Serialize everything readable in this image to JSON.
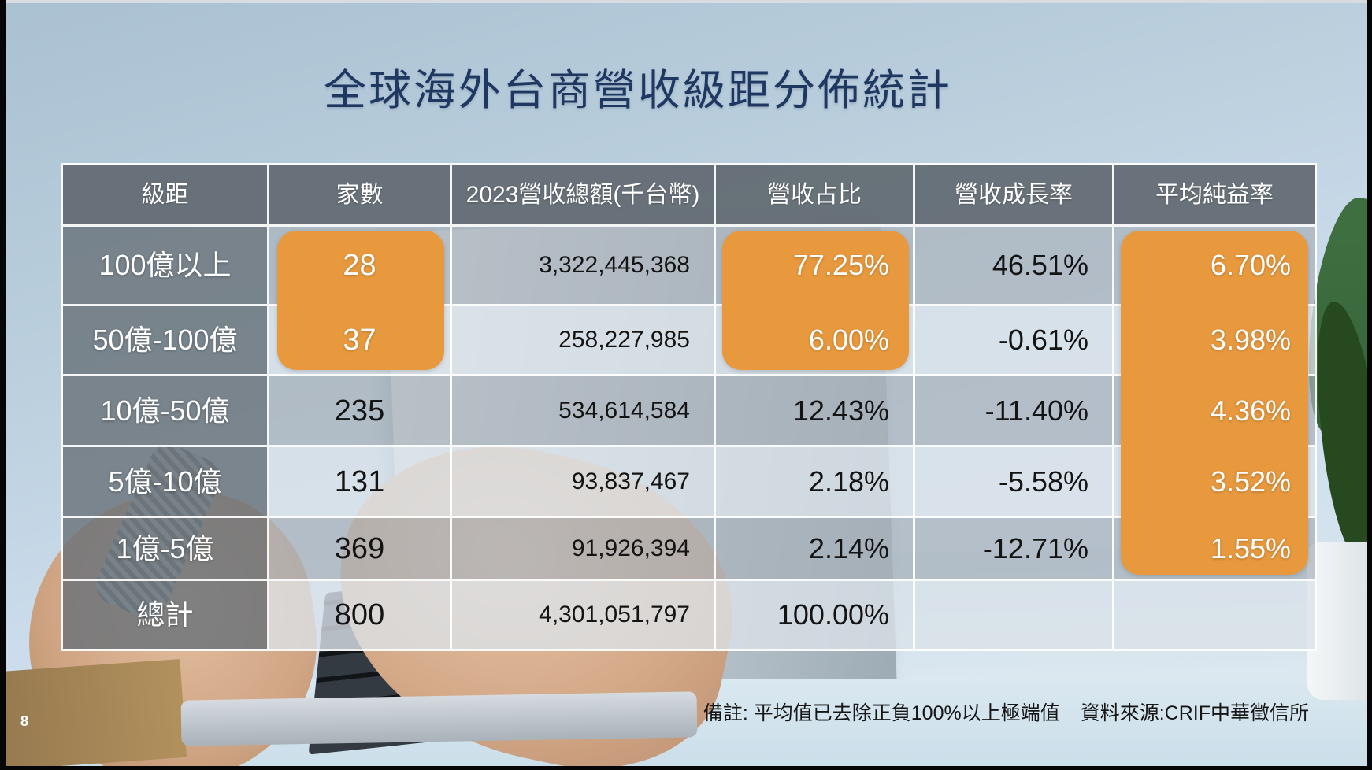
{
  "slide": {
    "title": "全球海外台商營收級距分佈統計",
    "footnote_note": "備註: 平均值已去除正負100%以上極端值",
    "footnote_source": "資料來源:CRIF中華徵信所",
    "page_number": "8"
  },
  "colors": {
    "highlight_orange": "#E8993E",
    "title_navy": "#1E3862",
    "header_gray": "#767E86",
    "table_text_dark": "#141414",
    "table_text_light": "#FFFFFF"
  },
  "chart_data": {
    "type": "table",
    "title": "全球海外台商營收級距分佈統計",
    "columns": [
      "級距",
      "家數",
      "2023營收總額(千台幣)",
      "營收占比",
      "營收成長率",
      "平均純益率"
    ],
    "rows": [
      [
        "100億以上",
        "28",
        "3,322,445,368",
        "77.25%",
        "46.51%",
        "6.70%"
      ],
      [
        "50億-100億",
        "37",
        "258,227,985",
        "6.00%",
        "-0.61%",
        "3.98%"
      ],
      [
        "10億-50億",
        "235",
        "534,614,584",
        "12.43%",
        "-11.40%",
        "4.36%"
      ],
      [
        "5億-10億",
        "131",
        "93,837,467",
        "2.18%",
        "-5.58%",
        "3.52%"
      ],
      [
        "1億-5億",
        "369",
        "91,926,394",
        "2.14%",
        "-12.71%",
        "1.55%"
      ],
      [
        "總計",
        "800",
        "4,301,051,797",
        "100.00%",
        "",
        ""
      ]
    ],
    "highlights": [
      {
        "column_index": 1,
        "row_start": 0,
        "row_end": 1
      },
      {
        "column_index": 3,
        "row_start": 0,
        "row_end": 1
      },
      {
        "column_index": 5,
        "row_start": 0,
        "row_end": 4
      }
    ]
  }
}
